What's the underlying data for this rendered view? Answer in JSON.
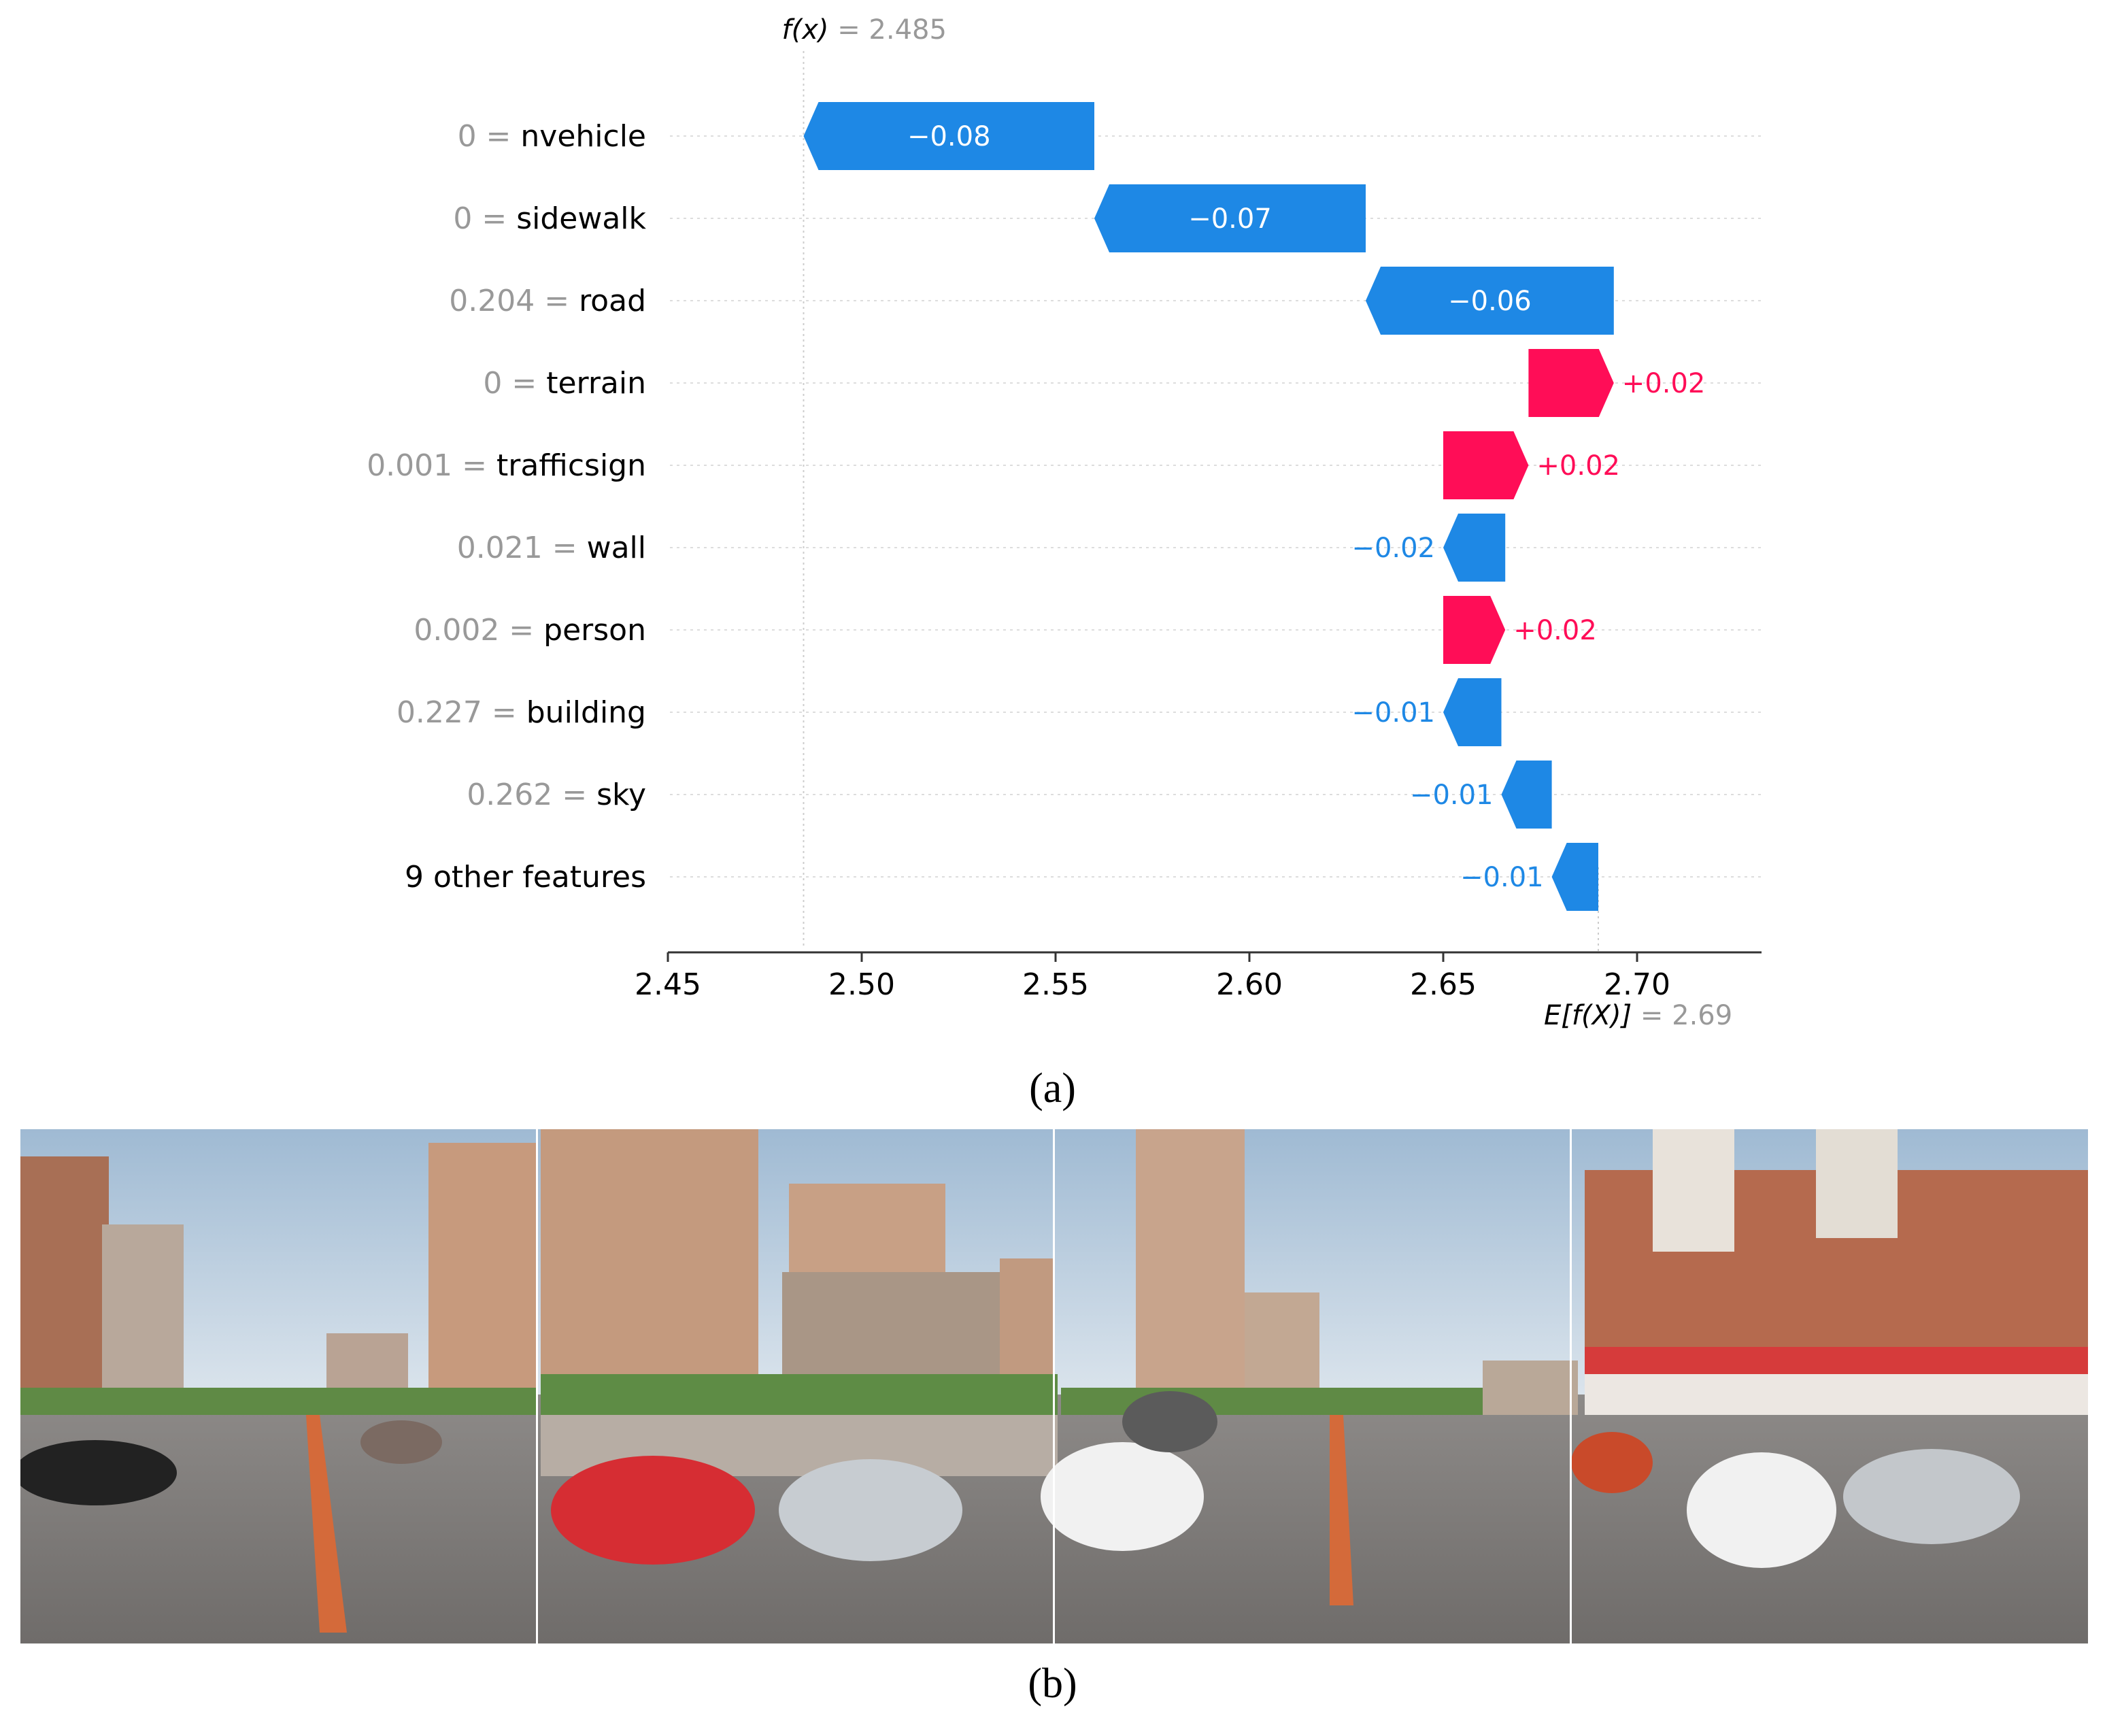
{
  "chart_data": {
    "type": "waterfall",
    "title": "",
    "fx_label": "f(x)",
    "fx_value": "= 2.485",
    "base_label": "E[f(X)]",
    "base_value": "= 2.69",
    "xlim": [
      2.45,
      2.73
    ],
    "xticks": [
      2.45,
      2.5,
      2.55,
      2.6,
      2.65,
      2.7
    ],
    "xtick_labels": [
      "2.45",
      "2.50",
      "2.55",
      "2.60",
      "2.65",
      "2.70"
    ],
    "rows": [
      {
        "value": "0",
        "feature": "nvehicle",
        "start": 2.56,
        "end": 2.485,
        "label": "−0.08"
      },
      {
        "value": "0",
        "feature": "sidewalk",
        "start": 2.63,
        "end": 2.56,
        "label": "−0.07"
      },
      {
        "value": "0.204",
        "feature": "road",
        "start": 2.694,
        "end": 2.63,
        "label": "−0.06"
      },
      {
        "value": "0",
        "feature": "terrain",
        "start": 2.672,
        "end": 2.694,
        "label": "+0.02"
      },
      {
        "value": "0.001",
        "feature": "trafficsign",
        "start": 2.65,
        "end": 2.672,
        "label": "+0.02"
      },
      {
        "value": "0.021",
        "feature": "wall",
        "start": 2.666,
        "end": 2.65,
        "label": "−0.02"
      },
      {
        "value": "0.002",
        "feature": "person",
        "start": 2.65,
        "end": 2.666,
        "label": "+0.02"
      },
      {
        "value": "0.227",
        "feature": "building",
        "start": 2.665,
        "end": 2.65,
        "label": "−0.01"
      },
      {
        "value": "0.262",
        "feature": "sky",
        "start": 2.678,
        "end": 2.665,
        "label": "−0.01"
      },
      {
        "value": "",
        "feature": "9 other features",
        "start": 2.69,
        "end": 2.678,
        "label": "−0.01"
      }
    ],
    "colors": {
      "positive": "#ff0d57",
      "negative": "#1e88e5",
      "muted": "#999999",
      "text": "#000000"
    }
  },
  "captions": {
    "a": "(a)",
    "b": "(b)"
  },
  "photo": {
    "alt": "Street view panorama split into four views"
  }
}
